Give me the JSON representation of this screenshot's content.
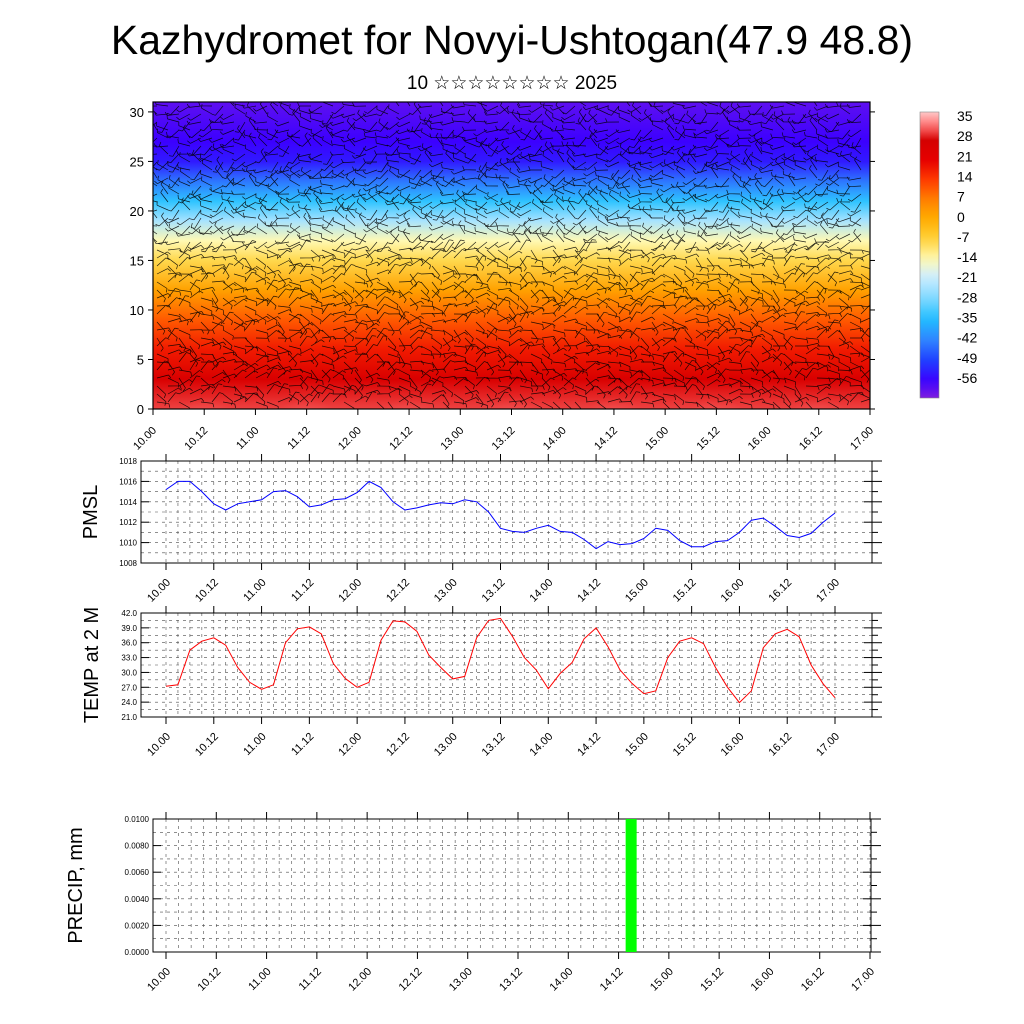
{
  "page": {
    "title": "Kazhydromet for Novyi-Ushtogan(47.9 48.8)",
    "subtitle": "10 ☆☆☆☆☆☆☆☆ 2025"
  },
  "chart_data": [
    {
      "type": "heatmap",
      "title": "",
      "xlabel": "",
      "ylabel": "",
      "x_ticks": [
        "10.00",
        "10.12",
        "11.00",
        "11.12",
        "12.00",
        "12.12",
        "13.00",
        "13.12",
        "14.00",
        "14.12",
        "15.00",
        "15.12",
        "16.00",
        "16.12",
        "17.00"
      ],
      "x_range": [
        0,
        168
      ],
      "y_ticks": [
        "0",
        "5",
        "10",
        "15",
        "20",
        "25",
        "30"
      ],
      "y_range": [
        0,
        31
      ],
      "colorbar_labels": [
        "35",
        "28",
        "21",
        "14",
        "7",
        "0",
        "-7",
        "-14",
        "-21",
        "-28",
        "-35",
        "-42",
        "-49",
        "-56"
      ],
      "colorbar_range": [
        -63,
        38
      ],
      "levels_temperature": [
        {
          "y": 0,
          "t": 31
        },
        {
          "y": 3,
          "t": 26
        },
        {
          "y": 6,
          "t": 18
        },
        {
          "y": 9,
          "t": 11
        },
        {
          "y": 12,
          "t": 2
        },
        {
          "y": 15,
          "t": -8
        },
        {
          "y": 17,
          "t": -14
        },
        {
          "y": 19,
          "t": -24
        },
        {
          "y": 21,
          "t": -34
        },
        {
          "y": 23,
          "t": -44
        },
        {
          "y": 25,
          "t": -54
        },
        {
          "y": 27,
          "t": -57
        },
        {
          "y": 31,
          "t": -60
        }
      ],
      "diurnal_warm_peaks_hours": [
        12,
        36,
        60,
        84,
        108,
        132,
        156
      ],
      "overlay": "wind barbs",
      "colors": {
        "warm": "#e60000",
        "cold": "#3300ff",
        "mid": "#fff5a0"
      }
    },
    {
      "type": "line",
      "title": "",
      "xlabel": "",
      "ylabel": "PMSL",
      "x_ticks": [
        "10.00",
        "10.12",
        "11.00",
        "11.12",
        "12.00",
        "12.12",
        "13.00",
        "13.12",
        "14.00",
        "14.12",
        "15.00",
        "15.12",
        "16.00",
        "16.12",
        "17.00"
      ],
      "x_step_hours": 3,
      "ylim": [
        1008,
        1018
      ],
      "y_ticks": [
        "1008",
        "1010",
        "1012",
        "1014",
        "1016",
        "1018"
      ],
      "grid": true,
      "color": "#0000ff",
      "values": [
        1015.2,
        1016.0,
        1016.0,
        1015.0,
        1013.8,
        1013.2,
        1013.8,
        1014.0,
        1014.2,
        1015.0,
        1015.1,
        1014.5,
        1013.5,
        1013.7,
        1014.2,
        1014.3,
        1014.9,
        1016.0,
        1015.4,
        1014.0,
        1013.2,
        1013.4,
        1013.7,
        1013.9,
        1013.8,
        1014.2,
        1014.0,
        1013.0,
        1011.4,
        1011.1,
        1011.0,
        1011.4,
        1011.7,
        1011.1,
        1011.0,
        1010.3,
        1009.4,
        1010.1,
        1009.8,
        1009.9,
        1010.4,
        1011.4,
        1011.2,
        1010.2,
        1009.6,
        1009.6,
        1010.1,
        1010.2,
        1011.0,
        1012.2,
        1012.4,
        1011.6,
        1010.7,
        1010.5,
        1010.9,
        1012.0,
        1012.9
      ]
    },
    {
      "type": "line",
      "title": "",
      "xlabel": "",
      "ylabel": "TEMP at 2 M",
      "x_ticks": [
        "10.00",
        "10.12",
        "11.00",
        "11.12",
        "12.00",
        "12.12",
        "13.00",
        "13.12",
        "14.00",
        "14.12",
        "15.00",
        "15.12",
        "16.00",
        "16.12",
        "17.00"
      ],
      "x_step_hours": 3,
      "ylim": [
        21.0,
        42.0
      ],
      "y_ticks": [
        "21.0",
        "24.0",
        "27.0",
        "30.0",
        "33.0",
        "36.0",
        "39.0",
        "42.0"
      ],
      "grid": true,
      "color": "#ff0000",
      "values": [
        27.2,
        27.5,
        34.5,
        36.3,
        37.0,
        35.5,
        31.0,
        28.0,
        26.6,
        27.5,
        36.0,
        38.8,
        39.2,
        37.8,
        31.8,
        28.8,
        27.0,
        28.0,
        36.5,
        40.4,
        40.2,
        38.3,
        33.5,
        31.0,
        28.7,
        29.2,
        37.0,
        40.5,
        40.9,
        37.3,
        33.0,
        30.5,
        26.7,
        29.8,
        32.0,
        36.8,
        39.0,
        35.2,
        30.5,
        27.8,
        25.7,
        26.3,
        33.0,
        36.3,
        37.0,
        35.8,
        31.0,
        27.0,
        23.9,
        26.3,
        35.0,
        37.8,
        38.7,
        37.2,
        31.5,
        27.7,
        24.9
      ]
    },
    {
      "type": "bar",
      "title": "",
      "xlabel": "",
      "ylabel": "PRECIP, mm",
      "x_ticks": [
        "10.00",
        "10.12",
        "11.00",
        "11.12",
        "12.00",
        "12.12",
        "13.00",
        "13.12",
        "14.00",
        "14.12",
        "15.00",
        "15.12",
        "16.00",
        "16.12",
        "17.00"
      ],
      "ylim": [
        0.0,
        0.01
      ],
      "y_ticks": [
        "0.0000",
        "0.0020",
        "0.0040",
        "0.0060",
        "0.0080",
        "0.0100"
      ],
      "grid": true,
      "color": "#00ff00",
      "bars": [
        {
          "hour": 111,
          "value": 0.01
        }
      ]
    }
  ]
}
